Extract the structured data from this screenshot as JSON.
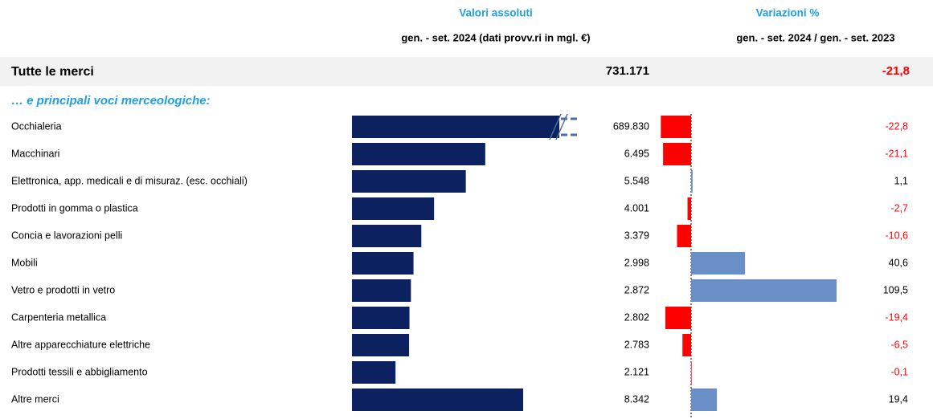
{
  "chart_data": {
    "type": "bar",
    "header_left": "Valori assoluti",
    "header_left_sub": "gen. - set. 2024 (dati provv.ri in mgl. €)",
    "header_right": "Variazioni %",
    "header_right_sub": "gen. - set. 2024 / gen. - set. 2023",
    "total": {
      "label": "Tutte le merci",
      "value": 731171,
      "value_label": "731.171",
      "change": -21.8,
      "change_label": "-21,8"
    },
    "section_label": "… e principali voci merceologiche:",
    "categories": [
      "Occhialeria",
      "Macchinari",
      "Elettronica, app. medicali e di misuraz. (esc. occhiali)",
      "Prodotti in gomma o plastica",
      "Concia e lavorazioni pelli",
      "Mobili",
      "Vetro e prodotti in vetro",
      "Carpenteria metallica",
      "Altre apparecchiature elettriche",
      "Prodotti tessili e abbigliamento",
      "Altre merci"
    ],
    "values": [
      689830,
      6495,
      5548,
      4001,
      3379,
      2998,
      2872,
      2802,
      2783,
      2121,
      8342
    ],
    "value_labels": [
      "689.830",
      "6.495",
      "5.548",
      "4.001",
      "3.379",
      "2.998",
      "2.872",
      "2.802",
      "2.783",
      "2.121",
      "8.342"
    ],
    "changes": [
      -22.8,
      -21.1,
      1.1,
      -2.7,
      -10.6,
      40.6,
      109.5,
      -19.4,
      -6.5,
      -0.1,
      19.4
    ],
    "change_labels": [
      "-22,8",
      "-21,1",
      "1,1",
      "-2,7",
      "-10,6",
      "40,6",
      "109,5",
      "-19,4",
      "-6,5",
      "-0,1",
      "19,4"
    ],
    "color": "#0b2160",
    "positive_color": "#6a8fc7",
    "negative_color": "#ff0000",
    "axis_break": true
  }
}
